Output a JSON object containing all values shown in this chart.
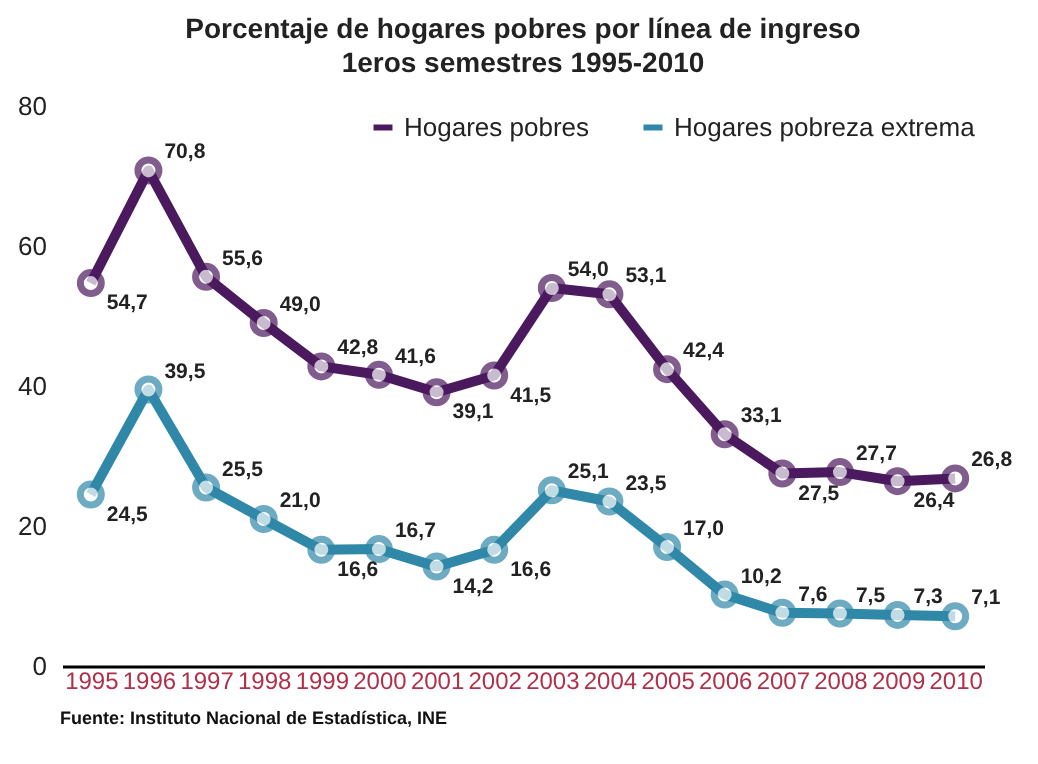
{
  "chart_data": {
    "type": "line",
    "title": "Porcentaje de hogares pobres por línea de ingreso",
    "subtitle": "1eros semestres 1995-2010",
    "categories": [
      "1995",
      "1996",
      "1997",
      "1998",
      "1999",
      "2000",
      "2001",
      "2002",
      "2003",
      "2004",
      "2005",
      "2006",
      "2007",
      "2008",
      "2009",
      "2010"
    ],
    "series": [
      {
        "name": "Hogares pobres",
        "color": "#4b1a5e",
        "values": [
          54.7,
          70.8,
          55.6,
          49.0,
          42.8,
          41.6,
          39.1,
          41.5,
          54.0,
          53.1,
          42.4,
          33.1,
          27.5,
          27.7,
          26.4,
          26.8
        ],
        "value_labels": [
          "54,7",
          "70,8",
          "55,6",
          "49,0",
          "42,8",
          "41,6",
          "39,1",
          "41,5",
          "54,0",
          "53,1",
          "42,4",
          "33,1",
          "27,5",
          "27,7",
          "26,4",
          "26,8"
        ]
      },
      {
        "name": "Hogares pobreza extrema",
        "color": "#2f88a8",
        "values": [
          24.5,
          39.5,
          25.5,
          21.0,
          16.6,
          16.7,
          14.2,
          16.6,
          25.1,
          23.5,
          17.0,
          10.2,
          7.6,
          7.5,
          7.3,
          7.1
        ],
        "value_labels": [
          "24,5",
          "39,5",
          "25,5",
          "21,0",
          "16,6",
          "16,7",
          "14,2",
          "16,6",
          "25,1",
          "23,5",
          "17,0",
          "10,2",
          "7,6",
          "7,5",
          "7,3",
          "7,1"
        ]
      }
    ],
    "ylim": [
      0,
      80
    ],
    "yticks": [
      0,
      20,
      40,
      60,
      80
    ],
    "marker": "circle",
    "line_style": "solid",
    "legend": "top right",
    "annotations": [
      "Fuente: Instituto Nacional de Estadística, INE"
    ]
  }
}
